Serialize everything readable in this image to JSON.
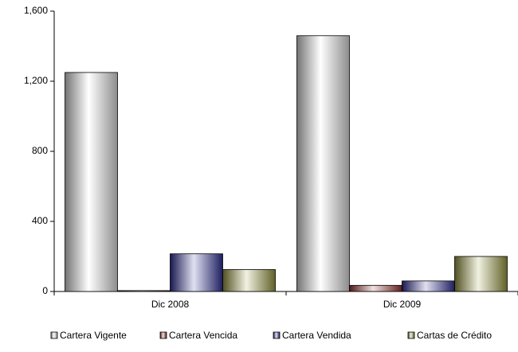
{
  "chart_data": {
    "type": "bar",
    "categories": [
      "Dic 2008",
      "Dic 2009"
    ],
    "series": [
      {
        "name": "Cartera Vigente",
        "color": "#ffffff",
        "values": [
          1250,
          1460
        ]
      },
      {
        "name": "Cartera Vencida",
        "color": "#a03030",
        "values": [
          5,
          35
        ]
      },
      {
        "name": "Cartera Vendida",
        "color": "#3030a0",
        "values": [
          215,
          60
        ]
      },
      {
        "name": "Cartas de Crédito",
        "color": "#a0a040",
        "values": [
          125,
          200
        ]
      }
    ],
    "ylim": [
      0,
      1600
    ],
    "yticks": [
      0,
      400,
      800,
      {
        "value": 1200,
        "label": "1,200"
      },
      {
        "value": 1600,
        "label": "1,600"
      }
    ],
    "legend": "bottom"
  }
}
